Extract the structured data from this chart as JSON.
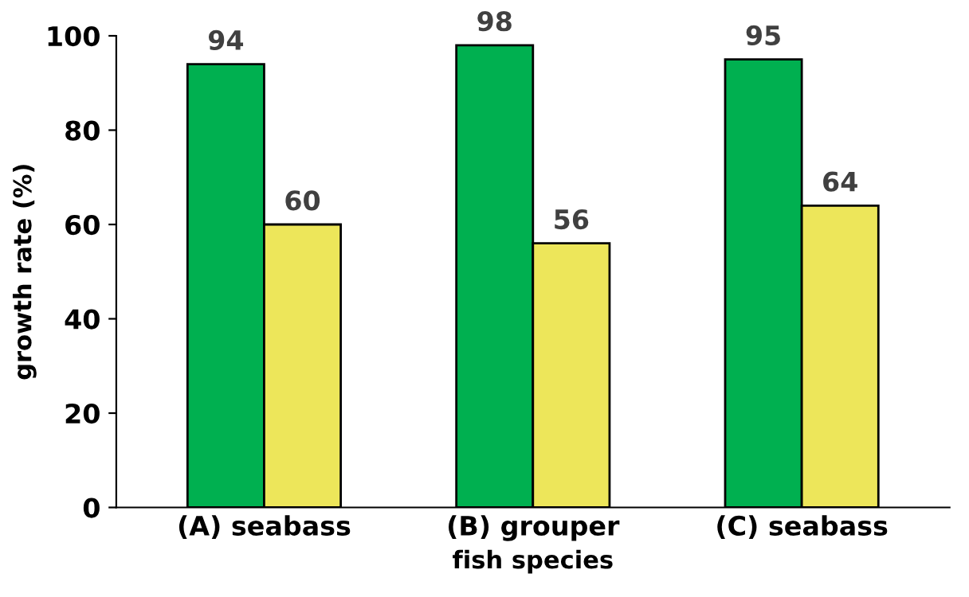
{
  "chart_data": {
    "type": "bar",
    "xlabel": "fish species",
    "ylabel": "growth rate (%)",
    "categories": [
      "(A) seabass",
      "(B) grouper",
      "(C) seabass"
    ],
    "series": [
      {
        "color": "#00b050",
        "values": [
          94,
          98,
          95
        ]
      },
      {
        "color": "#ede65a",
        "values": [
          60,
          56,
          64
        ]
      }
    ],
    "ylim": [
      0,
      100
    ],
    "yticks": [
      0,
      20,
      40,
      60,
      80,
      100
    ],
    "grid": false,
    "data_labels": true
  }
}
